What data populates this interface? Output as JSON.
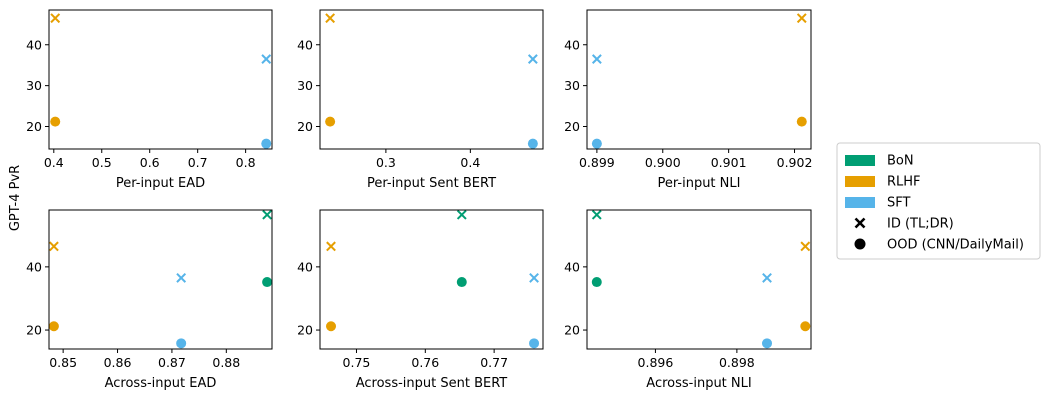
{
  "figure": {
    "ylabel": "GPT-4 PvR",
    "legend": {
      "placement": "center-right",
      "entries": [
        {
          "label": "BoN",
          "kind": "patch",
          "color": "#009e73"
        },
        {
          "label": "RLHF",
          "kind": "patch",
          "color": "#e69f00"
        },
        {
          "label": "SFT",
          "kind": "patch",
          "color": "#56b4e9"
        },
        {
          "label": "ID (TL;DR)",
          "kind": "x-marker",
          "color": "#000000"
        },
        {
          "label": "OOD (CNN/DailyMail)",
          "kind": "circle-marker",
          "color": "#000000"
        }
      ]
    }
  },
  "chart_data": [
    {
      "type": "scatter",
      "xlabel": "Per-input EAD",
      "ylabel": "",
      "xlim": [
        0.39,
        0.855
      ],
      "ylim": [
        14.5,
        48.5
      ],
      "xticks": [
        0.4,
        0.5,
        0.6,
        0.7,
        0.8
      ],
      "xtick_labels": [
        "0.4",
        "0.5",
        "0.6",
        "0.7",
        "0.8"
      ],
      "yticks": [
        20,
        30,
        40
      ],
      "ytick_labels": [
        "20",
        "30",
        "40"
      ],
      "points": [
        {
          "series": "RLHF",
          "split": "ID",
          "x": 0.403,
          "y": 46.5
        },
        {
          "series": "SFT",
          "split": "ID",
          "x": 0.843,
          "y": 36.5
        },
        {
          "series": "RLHF",
          "split": "OOD",
          "x": 0.403,
          "y": 21.2
        },
        {
          "series": "SFT",
          "split": "OOD",
          "x": 0.843,
          "y": 15.8
        }
      ]
    },
    {
      "type": "scatter",
      "xlabel": "Per-input Sent BERT",
      "ylabel": "",
      "xlim": [
        0.222,
        0.486
      ],
      "ylim": [
        14.5,
        48.5
      ],
      "xticks": [
        0.3,
        0.4
      ],
      "xtick_labels": [
        "0.3",
        "0.4"
      ],
      "yticks": [
        20,
        30,
        40
      ],
      "ytick_labels": [
        "20",
        "30",
        "40"
      ],
      "points": [
        {
          "series": "RLHF",
          "split": "ID",
          "x": 0.234,
          "y": 46.5
        },
        {
          "series": "SFT",
          "split": "ID",
          "x": 0.474,
          "y": 36.5
        },
        {
          "series": "RLHF",
          "split": "OOD",
          "x": 0.234,
          "y": 21.2
        },
        {
          "series": "SFT",
          "split": "OOD",
          "x": 0.474,
          "y": 15.8
        }
      ]
    },
    {
      "type": "scatter",
      "xlabel": "Per-input NLI",
      "ylabel": "",
      "xlim": [
        0.89885,
        0.90225
      ],
      "ylim": [
        14.5,
        48.5
      ],
      "xticks": [
        0.899,
        0.9,
        0.901,
        0.902
      ],
      "xtick_labels": [
        "0.899",
        "0.900",
        "0.901",
        "0.902"
      ],
      "yticks": [
        20,
        30,
        40
      ],
      "ytick_labels": [
        "20",
        "30",
        "40"
      ],
      "points": [
        {
          "series": "RLHF",
          "split": "ID",
          "x": 0.90211,
          "y": 46.5
        },
        {
          "series": "SFT",
          "split": "ID",
          "x": 0.899,
          "y": 36.5
        },
        {
          "series": "RLHF",
          "split": "OOD",
          "x": 0.90211,
          "y": 21.2
        },
        {
          "series": "SFT",
          "split": "OOD",
          "x": 0.899,
          "y": 15.8
        }
      ]
    },
    {
      "type": "scatter",
      "xlabel": "Across-input EAD",
      "ylabel": "",
      "xlim": [
        0.8474,
        0.8884
      ],
      "ylim": [
        14,
        58
      ],
      "xticks": [
        0.85,
        0.86,
        0.87,
        0.88
      ],
      "xtick_labels": [
        "0.85",
        "0.86",
        "0.87",
        "0.88"
      ],
      "yticks": [
        20,
        40
      ],
      "ytick_labels": [
        "20",
        "40"
      ],
      "points": [
        {
          "series": "BoN",
          "split": "ID",
          "x": 0.8875,
          "y": 56.5
        },
        {
          "series": "RLHF",
          "split": "ID",
          "x": 0.8483,
          "y": 46.5
        },
        {
          "series": "SFT",
          "split": "ID",
          "x": 0.8717,
          "y": 36.5
        },
        {
          "series": "BoN",
          "split": "OOD",
          "x": 0.8875,
          "y": 35.2
        },
        {
          "series": "RLHF",
          "split": "OOD",
          "x": 0.8483,
          "y": 21.2
        },
        {
          "series": "SFT",
          "split": "OOD",
          "x": 0.8717,
          "y": 15.8
        }
      ]
    },
    {
      "type": "scatter",
      "xlabel": "Across-input Sent BERT",
      "ylabel": "",
      "xlim": [
        0.7447,
        0.7771
      ],
      "ylim": [
        14,
        58
      ],
      "xticks": [
        0.75,
        0.76,
        0.77
      ],
      "xtick_labels": [
        "0.75",
        "0.76",
        "0.77"
      ],
      "yticks": [
        20,
        40
      ],
      "ytick_labels": [
        "20",
        "40"
      ],
      "points": [
        {
          "series": "BoN",
          "split": "ID",
          "x": 0.7653,
          "y": 56.5
        },
        {
          "series": "RLHF",
          "split": "ID",
          "x": 0.7463,
          "y": 46.5
        },
        {
          "series": "SFT",
          "split": "ID",
          "x": 0.7758,
          "y": 36.5
        },
        {
          "series": "BoN",
          "split": "OOD",
          "x": 0.7653,
          "y": 35.2
        },
        {
          "series": "RLHF",
          "split": "OOD",
          "x": 0.7463,
          "y": 21.2
        },
        {
          "series": "SFT",
          "split": "OOD",
          "x": 0.7758,
          "y": 15.8
        }
      ]
    },
    {
      "type": "scatter",
      "xlabel": "Across-input NLI",
      "ylabel": "",
      "xlim": [
        0.89432,
        0.89982
      ],
      "ylim": [
        14,
        58
      ],
      "xticks": [
        0.896,
        0.898
      ],
      "xtick_labels": [
        "0.896",
        "0.898"
      ],
      "yticks": [
        20,
        40
      ],
      "ytick_labels": [
        "20",
        "40"
      ],
      "points": [
        {
          "series": "BoN",
          "split": "ID",
          "x": 0.89456,
          "y": 56.5
        },
        {
          "series": "RLHF",
          "split": "ID",
          "x": 0.89968,
          "y": 46.5
        },
        {
          "series": "SFT",
          "split": "ID",
          "x": 0.89874,
          "y": 36.5
        },
        {
          "series": "BoN",
          "split": "OOD",
          "x": 0.89456,
          "y": 35.2
        },
        {
          "series": "RLHF",
          "split": "OOD",
          "x": 0.89968,
          "y": 21.2
        },
        {
          "series": "SFT",
          "split": "OOD",
          "x": 0.89874,
          "y": 15.8
        }
      ]
    }
  ],
  "colors": {
    "BoN": "#009e73",
    "RLHF": "#e69f00",
    "SFT": "#56b4e9"
  }
}
